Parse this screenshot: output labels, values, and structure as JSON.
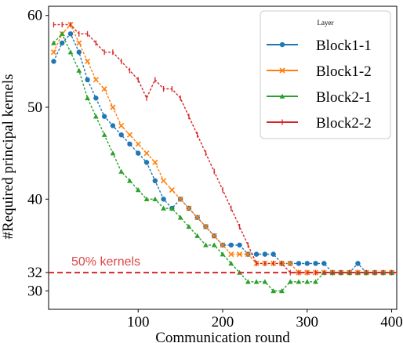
{
  "chart_data": {
    "type": "line",
    "title": "",
    "xlabel": "Communication round",
    "ylabel": "#Required principal kernels",
    "xlim": [
      -6,
      406
    ],
    "ylim": [
      28,
      61
    ],
    "x_ticks": [
      100,
      200,
      300,
      400
    ],
    "x_tick_labels": [
      "100",
      "200",
      "300",
      "400"
    ],
    "y_ticks": [
      30,
      32,
      40,
      50,
      60
    ],
    "y_tick_labels": [
      "30",
      "32",
      "40",
      "50",
      "60"
    ],
    "grid": false,
    "legend": {
      "title": "Layer",
      "position": "top-right"
    },
    "series": [
      {
        "name": "Block1-1",
        "color": "#1f77b4",
        "marker": "circle",
        "points": [
          [
            0,
            55
          ],
          [
            10,
            57
          ],
          [
            20,
            58
          ],
          [
            30,
            56
          ],
          [
            40,
            53
          ],
          [
            50,
            51
          ],
          [
            60,
            49
          ],
          [
            70,
            48
          ],
          [
            80,
            47
          ],
          [
            90,
            46
          ],
          [
            100,
            45
          ],
          [
            110,
            44
          ],
          [
            120,
            42
          ],
          [
            130,
            40
          ],
          [
            140,
            39
          ],
          [
            150,
            40
          ],
          [
            160,
            39
          ],
          [
            170,
            38
          ],
          [
            180,
            37
          ],
          [
            190,
            36
          ],
          [
            200,
            35
          ],
          [
            210,
            35
          ],
          [
            220,
            35
          ],
          [
            230,
            34
          ],
          [
            240,
            34
          ],
          [
            250,
            34
          ],
          [
            260,
            34
          ],
          [
            270,
            33
          ],
          [
            280,
            33
          ],
          [
            290,
            33
          ],
          [
            300,
            33
          ],
          [
            310,
            33
          ],
          [
            320,
            33
          ],
          [
            330,
            32
          ],
          [
            340,
            32
          ],
          [
            350,
            32
          ],
          [
            360,
            33
          ],
          [
            370,
            32
          ],
          [
            380,
            32
          ],
          [
            390,
            32
          ],
          [
            400,
            32
          ]
        ]
      },
      {
        "name": "Block1-2",
        "color": "#ff7f0e",
        "marker": "x",
        "points": [
          [
            0,
            56
          ],
          [
            10,
            58
          ],
          [
            20,
            59
          ],
          [
            30,
            57
          ],
          [
            40,
            55
          ],
          [
            50,
            53
          ],
          [
            60,
            52
          ],
          [
            70,
            50
          ],
          [
            80,
            48
          ],
          [
            90,
            47
          ],
          [
            100,
            46
          ],
          [
            110,
            45
          ],
          [
            120,
            44
          ],
          [
            130,
            42
          ],
          [
            140,
            41
          ],
          [
            150,
            40
          ],
          [
            160,
            39
          ],
          [
            170,
            38
          ],
          [
            180,
            37
          ],
          [
            190,
            36
          ],
          [
            200,
            35
          ],
          [
            210,
            34
          ],
          [
            220,
            34
          ],
          [
            230,
            34
          ],
          [
            240,
            33
          ],
          [
            250,
            33
          ],
          [
            260,
            33
          ],
          [
            270,
            33
          ],
          [
            280,
            33
          ],
          [
            290,
            32
          ],
          [
            300,
            32
          ],
          [
            310,
            32
          ],
          [
            320,
            32
          ],
          [
            330,
            32
          ],
          [
            340,
            32
          ],
          [
            350,
            32
          ],
          [
            360,
            32
          ],
          [
            370,
            32
          ],
          [
            380,
            32
          ],
          [
            390,
            32
          ],
          [
            400,
            32
          ]
        ]
      },
      {
        "name": "Block2-1",
        "color": "#2ca02c",
        "marker": "triangle",
        "points": [
          [
            0,
            57
          ],
          [
            10,
            58
          ],
          [
            20,
            56
          ],
          [
            30,
            54
          ],
          [
            40,
            51
          ],
          [
            50,
            49
          ],
          [
            60,
            47
          ],
          [
            70,
            45
          ],
          [
            80,
            43
          ],
          [
            90,
            42
          ],
          [
            100,
            41
          ],
          [
            110,
            40
          ],
          [
            120,
            40
          ],
          [
            130,
            39
          ],
          [
            140,
            39
          ],
          [
            150,
            38
          ],
          [
            160,
            37
          ],
          [
            170,
            36
          ],
          [
            180,
            35
          ],
          [
            190,
            35
          ],
          [
            200,
            34
          ],
          [
            210,
            33
          ],
          [
            220,
            32
          ],
          [
            230,
            31
          ],
          [
            240,
            31
          ],
          [
            250,
            31
          ],
          [
            260,
            30
          ],
          [
            270,
            30
          ],
          [
            280,
            31
          ],
          [
            290,
            31
          ],
          [
            300,
            31
          ],
          [
            310,
            31
          ],
          [
            320,
            32
          ],
          [
            330,
            32
          ],
          [
            340,
            32
          ],
          [
            350,
            32
          ],
          [
            360,
            32
          ],
          [
            370,
            32
          ],
          [
            380,
            32
          ],
          [
            390,
            32
          ],
          [
            400,
            32
          ]
        ]
      },
      {
        "name": "Block2-2",
        "color": "#d62728",
        "marker": "tick",
        "points": [
          [
            0,
            59
          ],
          [
            10,
            59
          ],
          [
            20,
            59
          ],
          [
            30,
            58
          ],
          [
            40,
            58
          ],
          [
            50,
            57
          ],
          [
            60,
            56
          ],
          [
            70,
            56
          ],
          [
            80,
            55
          ],
          [
            90,
            54
          ],
          [
            100,
            53
          ],
          [
            110,
            51
          ],
          [
            120,
            53
          ],
          [
            130,
            52
          ],
          [
            140,
            52
          ],
          [
            150,
            51
          ],
          [
            160,
            49
          ],
          [
            170,
            47
          ],
          [
            180,
            45
          ],
          [
            190,
            43
          ],
          [
            200,
            41
          ],
          [
            210,
            39
          ],
          [
            220,
            37
          ],
          [
            230,
            35
          ],
          [
            240,
            33
          ],
          [
            250,
            33
          ],
          [
            260,
            33
          ],
          [
            270,
            33
          ],
          [
            280,
            32
          ],
          [
            290,
            32
          ],
          [
            300,
            32
          ],
          [
            310,
            32
          ],
          [
            320,
            32
          ],
          [
            330,
            32
          ],
          [
            340,
            32
          ],
          [
            350,
            32
          ],
          [
            360,
            32
          ],
          [
            370,
            32
          ],
          [
            380,
            32
          ],
          [
            390,
            32
          ],
          [
            400,
            32
          ]
        ]
      }
    ],
    "reference_line": {
      "y": 32,
      "label": "50% kernels",
      "color": "#d62728",
      "style": "dashed"
    }
  }
}
